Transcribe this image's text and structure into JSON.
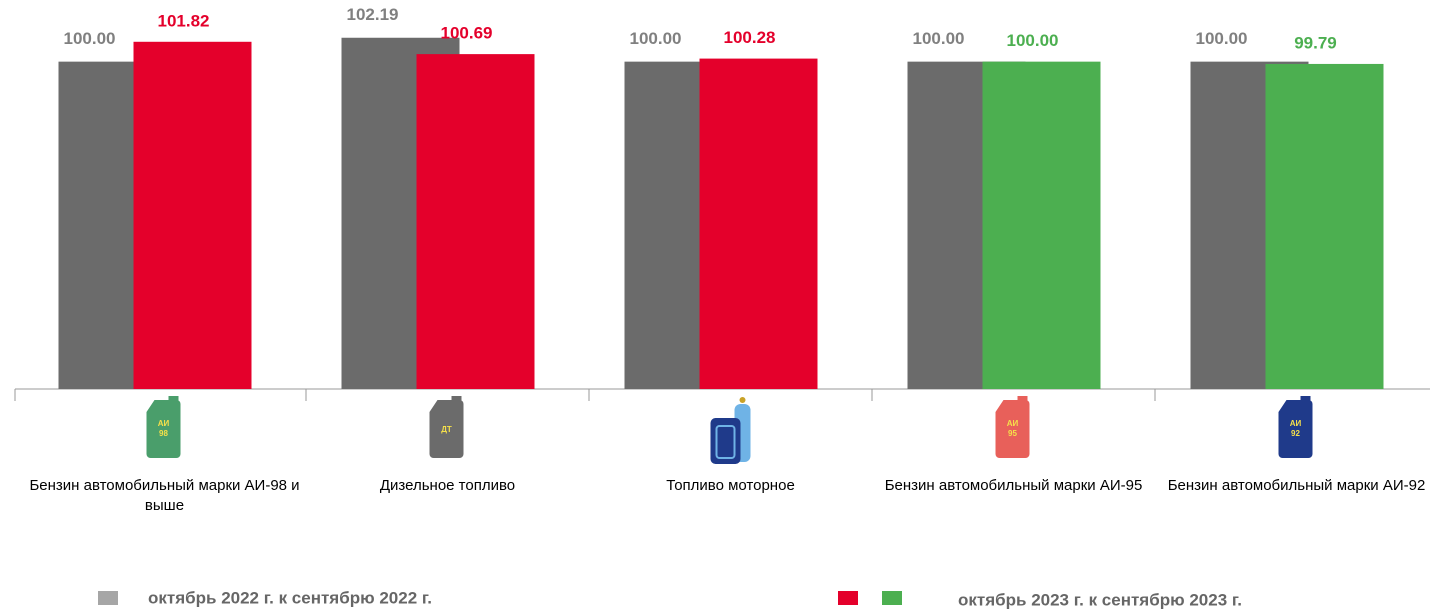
{
  "chart_data": {
    "type": "bar",
    "categories": [
      "Бензин автомобильный марки АИ-98 и выше",
      "Дизельное топливо",
      "Топливо моторное",
      "Бензин автомобильный марки АИ-95",
      "Бензин автомобильный марки АИ-92"
    ],
    "icons": [
      {
        "color": "#4a9e6b",
        "lines": [
          "АИ",
          "98"
        ]
      },
      {
        "color": "#6b6b6b",
        "lines": [
          "ДТ"
        ]
      },
      {
        "color": "#2a4f9e",
        "lines": []
      },
      {
        "color": "#e8605a",
        "lines": [
          "АИ",
          "95"
        ]
      },
      {
        "color": "#1f3a8a",
        "lines": [
          "АИ",
          "92"
        ]
      }
    ],
    "series": [
      {
        "name": "октябрь 2022 г. к сентябрю 2022 г.",
        "color": "#6b6b6b",
        "label_color": "#808080",
        "values": [
          100,
          102.19,
          100,
          100,
          100
        ],
        "value_labels": [
          "100.00",
          "102.19",
          "100.00",
          "100.00",
          "100.00"
        ]
      },
      {
        "name": "октябрь 2023 г. к сентябрю 2023 г.",
        "colors": [
          "#e4002b",
          "#e4002b",
          "#e4002b",
          "#4caf50",
          "#4caf50"
        ],
        "values": [
          101.82,
          100.69,
          100.28,
          100,
          99.79
        ],
        "value_labels": [
          "101.82",
          "100.69",
          "100.28",
          "100.00",
          "99.79"
        ]
      }
    ],
    "ylim": [
      70,
      104
    ]
  }
}
